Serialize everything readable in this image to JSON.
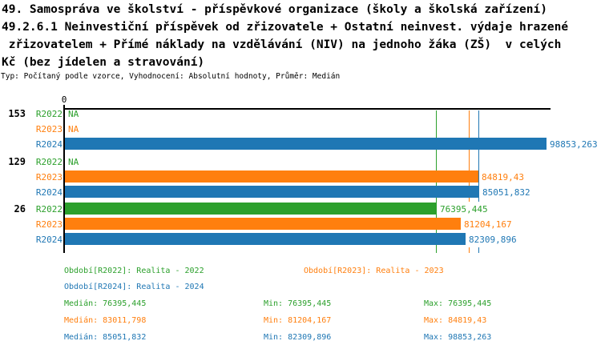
{
  "title": {
    "lines": [
      "49. Samospráva ve školství - příspěvkové organizace (školy a školská zařízení)",
      "49.2.6.1 Neinvestiční příspěvek od zřizovatele + Ostatní neinvest. výdaje hrazené",
      " zřizovatelem + Přímé náklady na vzdělávání (NIV) na jednoho žáka (ZŠ)  v celých",
      "Kč (bez jídelen a stravování)"
    ],
    "meta": "Typ: Počítaný podle vzorce, Vyhodnocení: Absolutní hodnoty, Průměr: Medián"
  },
  "colors": {
    "R2022": "#2ca02c",
    "R2023": "#ff7f0e",
    "R2024": "#1f77b4",
    "axis": "#000000"
  },
  "chart_data": {
    "type": "bar",
    "orientation": "horizontal",
    "title": "49.2.6.1 Neinvestiční příspěvek od zřizovatele + Ostatní neinvest. výdaje hrazené zřizovatelem + Přímé náklady na vzdělávání (NIV) na jednoho žáka (ZŠ) v celých Kč (bez jídelen a stravování)",
    "x_axis": {
      "origin_label": "0",
      "min": 0,
      "scale_max": 98853.263,
      "grid": false
    },
    "series_names": [
      "R2022",
      "R2023",
      "R2024"
    ],
    "groups": [
      {
        "id": "153",
        "rows": [
          {
            "series": "R2022",
            "value": null,
            "label": "NA"
          },
          {
            "series": "R2023",
            "value": null,
            "label": "NA"
          },
          {
            "series": "R2024",
            "value": 98853.263,
            "label": "98853,263"
          }
        ]
      },
      {
        "id": "129",
        "rows": [
          {
            "series": "R2022",
            "value": null,
            "label": "NA"
          },
          {
            "series": "R2023",
            "value": 84819.43,
            "label": "84819,43"
          },
          {
            "series": "R2024",
            "value": 85051.832,
            "label": "85051,832"
          }
        ]
      },
      {
        "id": "26",
        "rows": [
          {
            "series": "R2022",
            "value": 76395.445,
            "label": "76395,445"
          },
          {
            "series": "R2023",
            "value": 81204.167,
            "label": "81204,167"
          },
          {
            "series": "R2024",
            "value": 82309.896,
            "label": "82309,896"
          }
        ]
      }
    ],
    "median_lines": [
      {
        "series": "R2022",
        "value": 76395.445
      },
      {
        "series": "R2023",
        "value": 83011.798
      },
      {
        "series": "R2024",
        "value": 85051.832
      }
    ],
    "legend_position": "bottom"
  },
  "legend": {
    "items": [
      {
        "series": "R2022",
        "label": "Období[R2022]: Realita - 2022"
      },
      {
        "series": "R2023",
        "label": "Období[R2023]: Realita - 2023"
      },
      {
        "series": "R2024",
        "label": "Období[R2024]: Realita - 2024"
      }
    ]
  },
  "stats": {
    "rows": [
      {
        "series": "R2022",
        "median": "Medián: 76395,445",
        "min": "Min: 76395,445",
        "max": "Max: 76395,445"
      },
      {
        "series": "R2023",
        "median": "Medián: 83011,798",
        "min": "Min: 81204,167",
        "max": "Max: 84819,43"
      },
      {
        "series": "R2024",
        "median": "Medián: 85051,832",
        "min": "Min: 82309,896",
        "max": "Max: 98853,263"
      }
    ]
  }
}
